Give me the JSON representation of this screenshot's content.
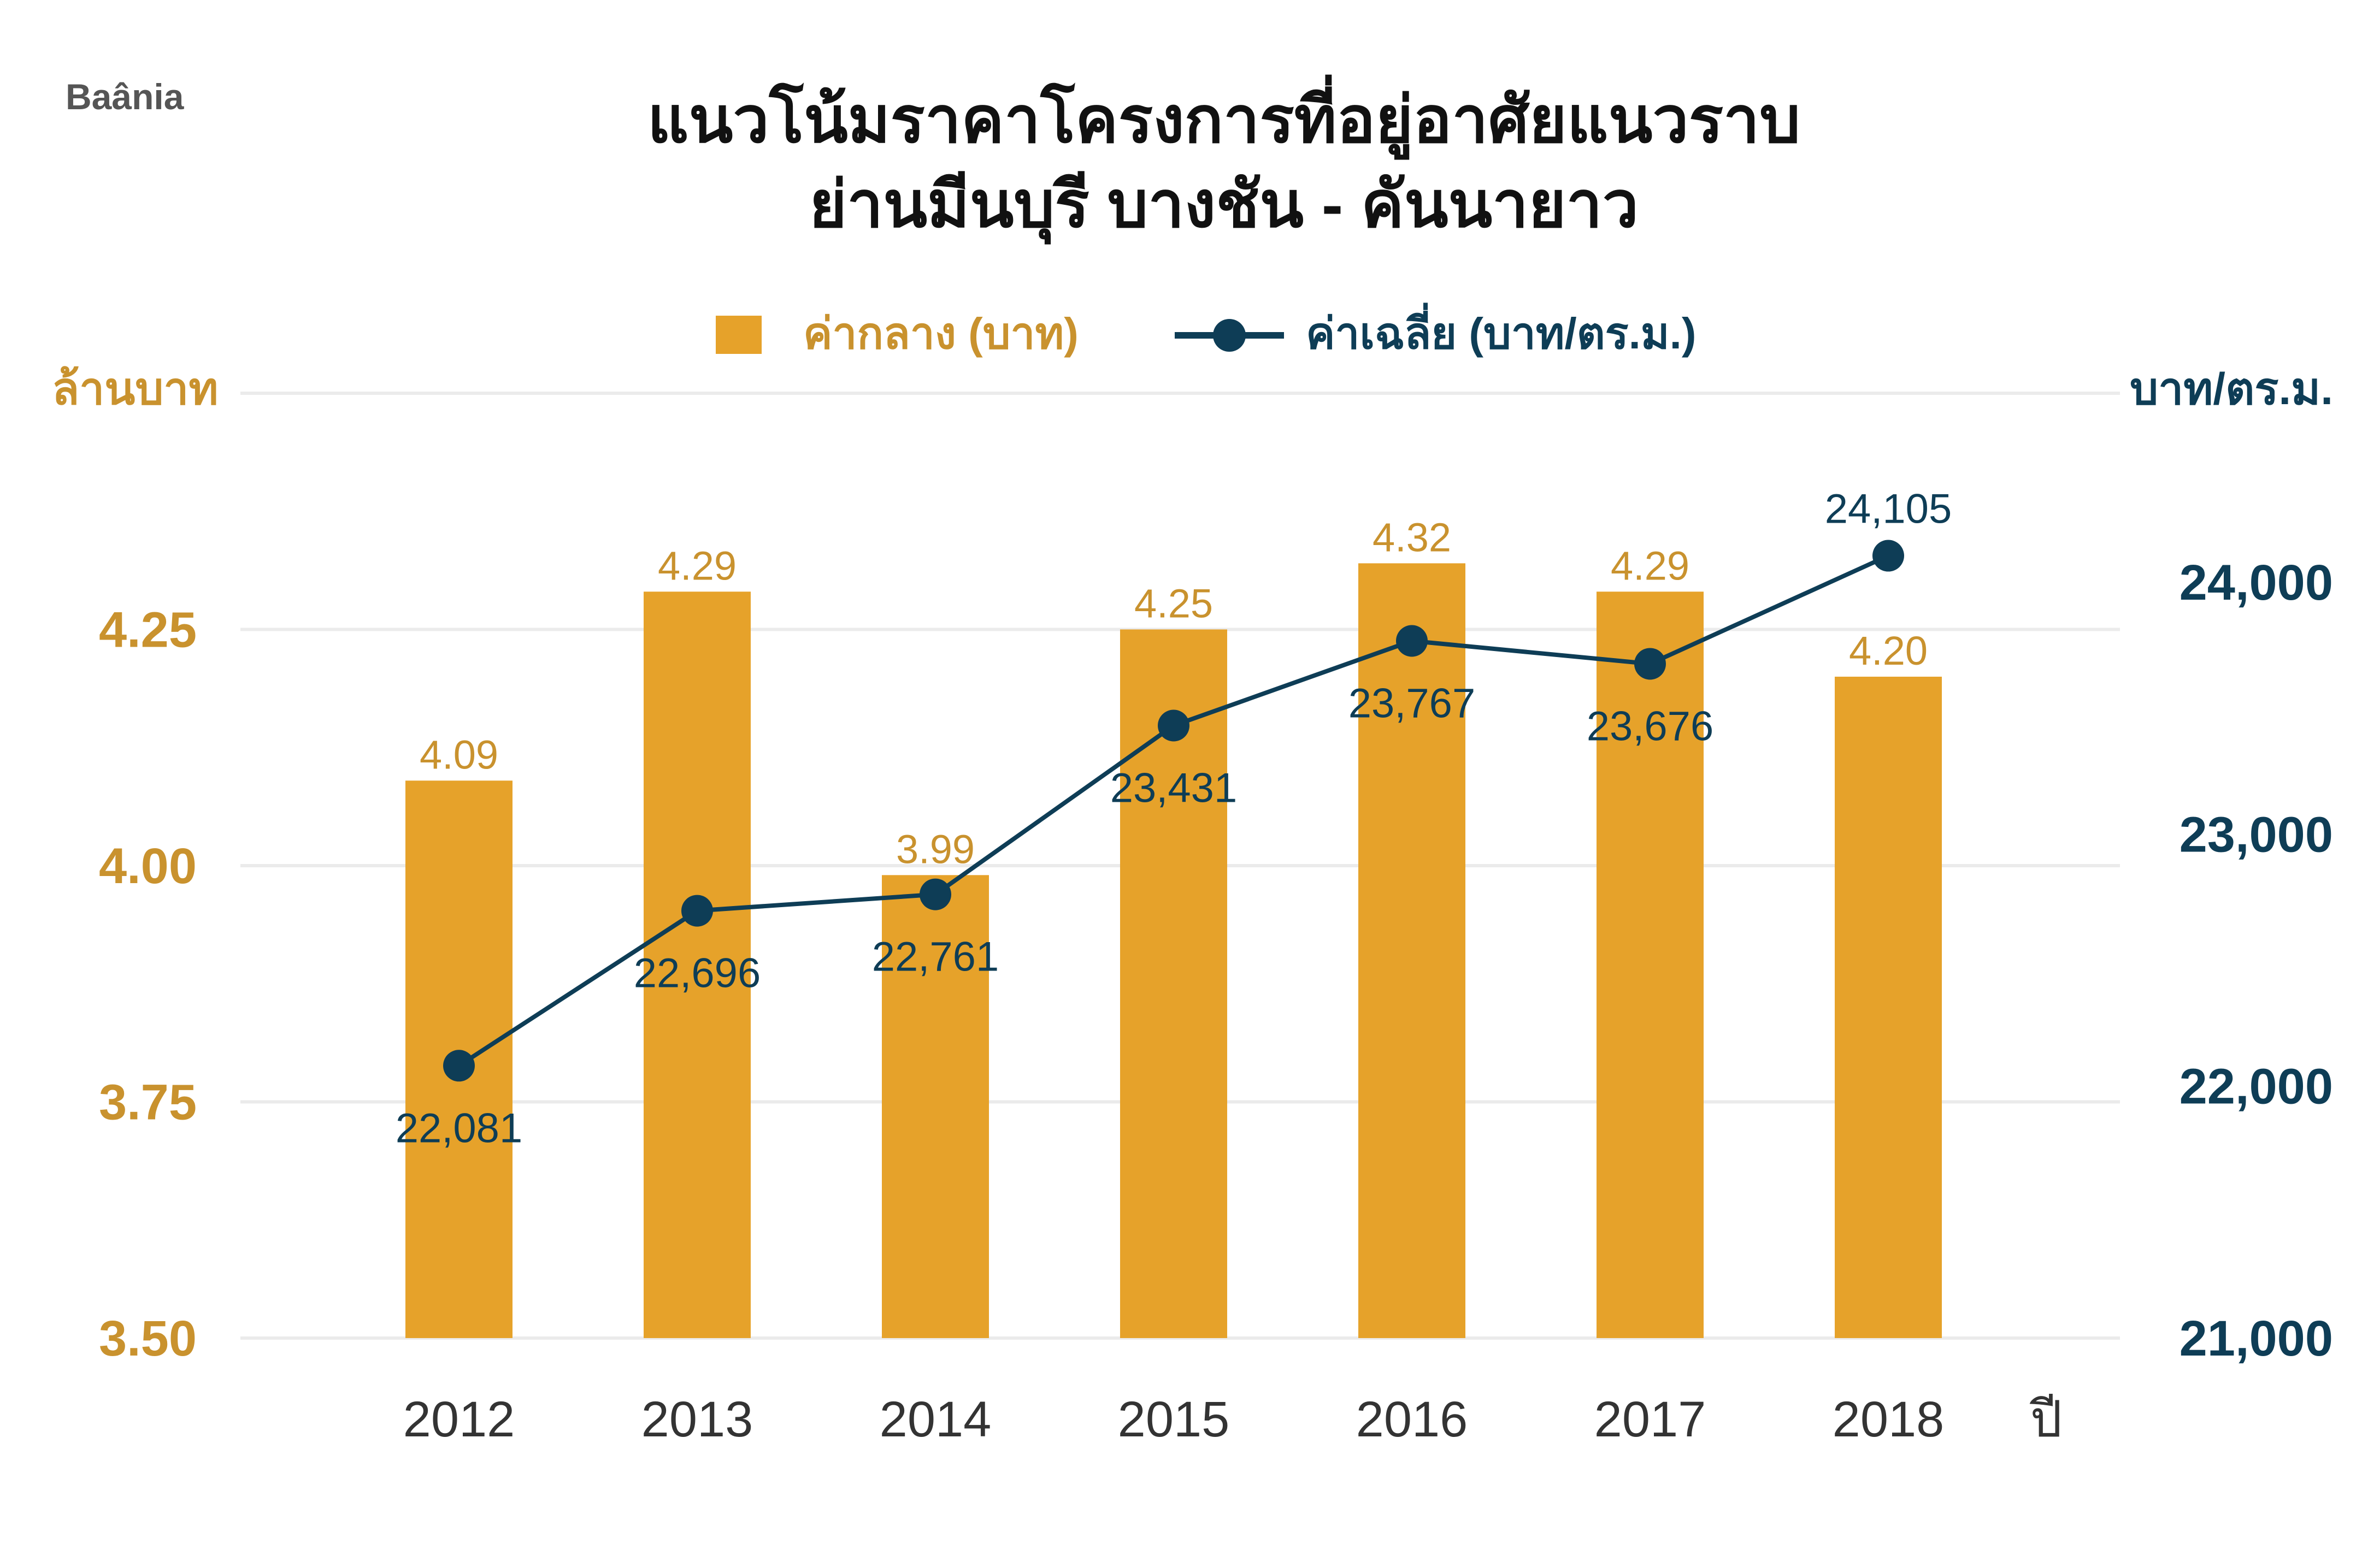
{
  "brand": "Baânia",
  "chart_data": {
    "type": "bar",
    "title": "แนวโน้มราคาโครงการที่อยู่อาศัยแนวราบ",
    "subtitle": "ย่านมีนบุรี บางชัน - คันนายาว",
    "xlabel": "ปี",
    "ylabel": "ล้านบาท",
    "y2label": "บาท/ตร.ม.",
    "categories": [
      "2012",
      "2013",
      "2014",
      "2015",
      "2016",
      "2017",
      "2018"
    ],
    "series": [
      {
        "name": "ค่ากลาง (บาท)",
        "type": "bar",
        "axis": "left",
        "color": "#E6A22A",
        "values": [
          4.09,
          4.29,
          3.99,
          4.25,
          4.32,
          4.29,
          4.2
        ],
        "labels": [
          "4.09",
          "4.29",
          "3.99",
          "4.25",
          "4.32",
          "4.29",
          "4.20"
        ]
      },
      {
        "name": "ค่าเฉลี่ย (บาท/ตร.ม.)",
        "type": "line",
        "axis": "right",
        "color": "#0E3D56",
        "values": [
          22081,
          22696,
          22761,
          23431,
          23767,
          23676,
          24105
        ],
        "labels": [
          "22,081",
          "22,696",
          "22,761",
          "23,431",
          "23,767",
          "23,676",
          "24,105"
        ]
      }
    ],
    "ylim": [
      3.5,
      4.5
    ],
    "yticks": [
      "3.50",
      "3.75",
      "4.00",
      "4.25"
    ],
    "y2lim": [
      21000,
      24750
    ],
    "y2ticks": [
      "21,000",
      "22,000",
      "23,000",
      "24,000"
    ],
    "grid": true,
    "legend": "top-center",
    "colors": {
      "bar": "#E6A22A",
      "left_axis": "#C9922E",
      "line": "#0E3D56",
      "grid": "#EBEBEB",
      "ink": "#333333"
    }
  }
}
